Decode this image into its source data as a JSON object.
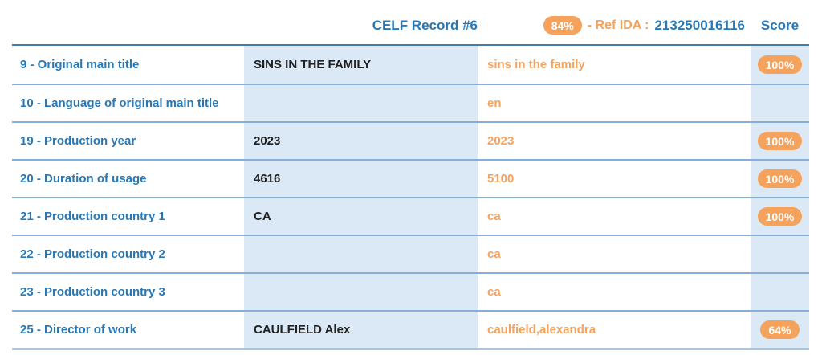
{
  "colors": {
    "accent_blue": "#2878b5",
    "orange": "#f5a25d",
    "light_blue_bg": "#dbe8f5",
    "separator": "#86aed9",
    "header_border": "#4479ad",
    "bottom_border": "#a9c6e2",
    "value_text": "#212121",
    "badge_text": "#ffffff"
  },
  "header": {
    "title": "CELF Record #6",
    "match_percent": "84%",
    "ref_label": "- Ref IDA :",
    "ref_value": "213250016116",
    "score_label": "Score"
  },
  "table": {
    "rows": [
      {
        "label": "9 - Original main title",
        "left_value": "SINS IN THE FAMILY",
        "right_value": "sins in the family",
        "score": "100%"
      },
      {
        "label": "10 - Language of original main title",
        "left_value": "",
        "right_value": "en",
        "score": ""
      },
      {
        "label": "19 - Production year",
        "left_value": "2023",
        "right_value": "2023",
        "score": "100%"
      },
      {
        "label": "20 - Duration of usage",
        "left_value": "4616",
        "right_value": "5100",
        "score": "100%"
      },
      {
        "label": "21 - Production country 1",
        "left_value": "CA",
        "right_value": "ca",
        "score": "100%"
      },
      {
        "label": "22 - Production country 2",
        "left_value": "",
        "right_value": "ca",
        "score": ""
      },
      {
        "label": "23 - Production country 3",
        "left_value": "",
        "right_value": "ca",
        "score": ""
      },
      {
        "label": "25 - Director of work",
        "left_value": "CAULFIELD Alex",
        "right_value": "caulfield,alexandra",
        "score": "64%"
      }
    ]
  }
}
